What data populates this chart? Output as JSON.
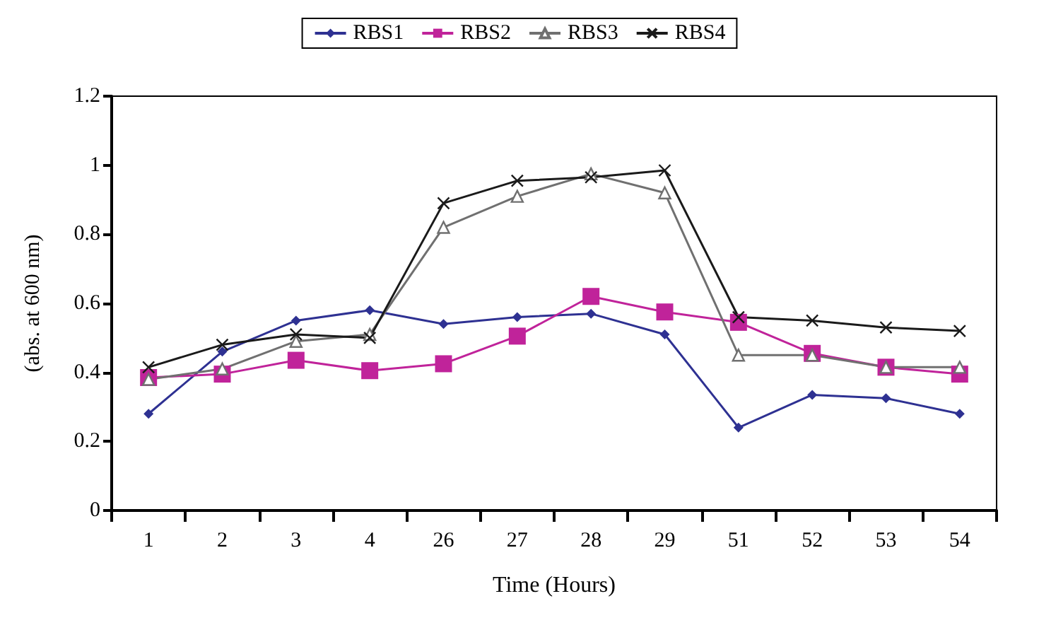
{
  "chart_data": {
    "type": "line",
    "xlabel": "Time (Hours)",
    "ylabel": "(abs. at 600 nm)",
    "categories": [
      "1",
      "2",
      "3",
      "4",
      "26",
      "27",
      "28",
      "29",
      "51",
      "52",
      "53",
      "54"
    ],
    "ylim": [
      0,
      1.2
    ],
    "yticks": [
      0,
      0.2,
      0.4,
      0.6,
      0.8,
      1,
      1.2
    ],
    "grid": false,
    "legend": "top",
    "line_style": "solid",
    "series": [
      {
        "name": "RBS1",
        "color": "#2e3192",
        "marker": "diamond",
        "values": [
          0.28,
          0.46,
          0.55,
          0.58,
          0.54,
          0.56,
          0.57,
          0.51,
          0.24,
          0.335,
          0.325,
          0.28
        ]
      },
      {
        "name": "RBS2",
        "color": "#c0239a",
        "marker": "square",
        "values": [
          0.385,
          0.395,
          0.435,
          0.405,
          0.425,
          0.505,
          0.62,
          0.575,
          0.545,
          0.455,
          0.415,
          0.395
        ]
      },
      {
        "name": "RBS3",
        "color": "#707070",
        "marker": "triangle",
        "values": [
          0.38,
          0.41,
          0.49,
          0.51,
          0.82,
          0.91,
          0.975,
          0.92,
          0.45,
          0.45,
          0.415,
          0.415
        ]
      },
      {
        "name": "RBS4",
        "color": "#1a1a1a",
        "marker": "cross",
        "values": [
          0.415,
          0.48,
          0.51,
          0.5,
          0.89,
          0.955,
          0.965,
          0.985,
          0.56,
          0.55,
          0.53,
          0.52
        ]
      }
    ]
  }
}
